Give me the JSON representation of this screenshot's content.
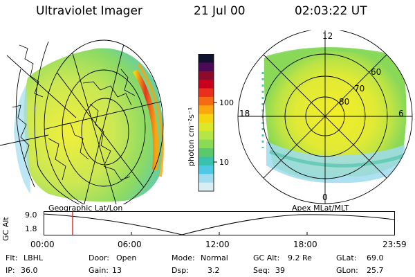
{
  "header": {
    "title": "Ultraviolet Imager",
    "date": "21 Jul 00",
    "time": "02:03:22 UT"
  },
  "colorbar": {
    "unit_label": "photon cm⁻²s⁻¹",
    "ticks": [
      "100",
      "10"
    ],
    "colors": [
      "#101030",
      "#4b0a55",
      "#8c0a2a",
      "#c8001e",
      "#e8301c",
      "#f66a14",
      "#faa60c",
      "#f5d510",
      "#dbe82a",
      "#b5e645",
      "#8ada55",
      "#5bc86a",
      "#38c2ad",
      "#4ec9e4",
      "#9fdcf0",
      "#d8eef2"
    ]
  },
  "geo_panel": {
    "label": "Geographic Lat/Lon"
  },
  "polar_panel": {
    "label": "Apex MLat/MLT",
    "mlt_labels": {
      "top": "12",
      "left": "18",
      "right": "6",
      "bottom": "0"
    },
    "lat_labels": [
      "60",
      "70",
      "80"
    ]
  },
  "altitude_plot": {
    "ylabel": "GC Alt",
    "y_ticks": [
      "9.0",
      "1.8"
    ],
    "x_ticks": [
      "00:00",
      "06:00",
      "12:00",
      "18:00",
      "23:59"
    ],
    "current_time_marker_color": "#e0302a"
  },
  "info": {
    "flt_label": "Flt:",
    "flt_value": "LBHL",
    "ip_label": "IP:",
    "ip_value": "36.0",
    "door_label": "Door:",
    "door_value": "Open",
    "gain_label": "Gain:",
    "gain_value": "13",
    "mode_label": "Mode:",
    "mode_value": "Normal",
    "dsp_label": "Dsp:",
    "dsp_value": "3.2",
    "gcalt_label": "GC Alt:",
    "gcalt_value": "9.2 Re",
    "seq_label": "Seq:",
    "seq_value": "39",
    "glat_label": "GLat:",
    "glat_value": "69.0",
    "glon_label": "GLon:",
    "glon_value": "25.7"
  }
}
